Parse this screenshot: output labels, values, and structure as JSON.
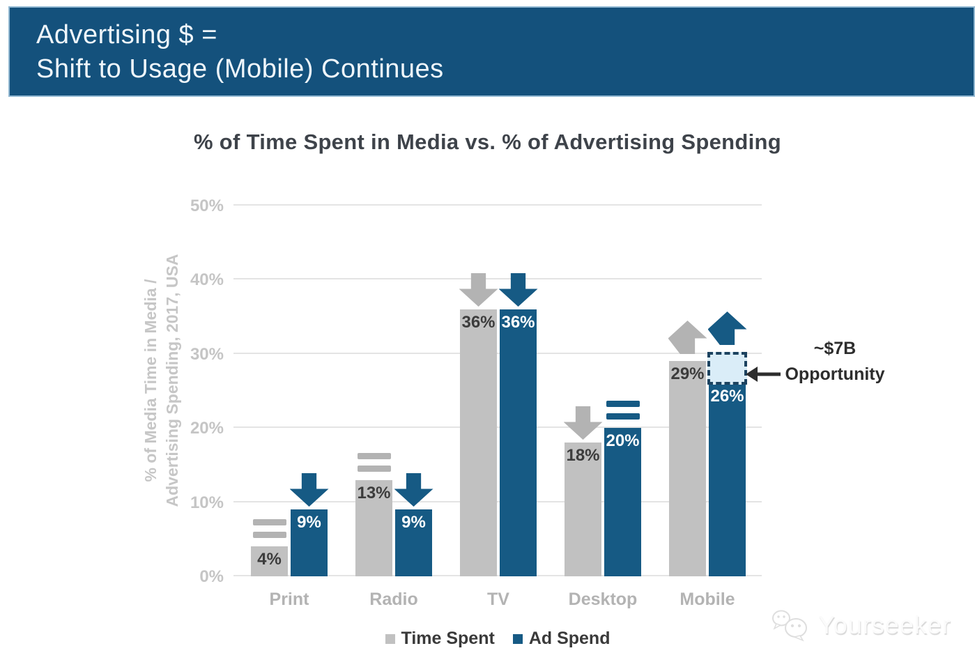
{
  "header": {
    "line1": "Advertising $ =",
    "line2": "Shift to Usage (Mobile) Continues"
  },
  "chart_data": {
    "type": "bar",
    "title": "% of Time Spent in Media vs. % of Advertising Spending",
    "ylabel_line1": "% of Media Time in Media /",
    "ylabel_line2": "Advertising Spending, 2017, USA",
    "categories": [
      "Print",
      "Radio",
      "TV",
      "Desktop",
      "Mobile"
    ],
    "series": [
      {
        "name": "Time Spent",
        "color": "#c1c1c1",
        "indicator_color": "#b3b3b3",
        "label_color": "#3c3c3c",
        "values": [
          4,
          13,
          36,
          18,
          29
        ],
        "value_labels": [
          "4%",
          "13%",
          "36%",
          "18%",
          "29%"
        ],
        "trends": [
          "flat",
          "flat",
          "down",
          "down",
          "up"
        ]
      },
      {
        "name": "Ad Spend",
        "color": "#165a84",
        "indicator_color": "#165a84",
        "label_color": "#ffffff",
        "values": [
          9,
          9,
          36,
          20,
          26
        ],
        "value_labels": [
          "9%",
          "9%",
          "36%",
          "20%",
          "26%"
        ],
        "trends": [
          "down",
          "down",
          "down",
          "flat",
          "up"
        ]
      }
    ],
    "y_ticks": [
      "0%",
      "10%",
      "20%",
      "30%",
      "40%",
      "50%"
    ],
    "ylim": [
      0,
      50
    ],
    "grid": true,
    "legend_position": "bottom",
    "opportunity": {
      "category": "Mobile",
      "series": "Ad Spend",
      "gap_top_value": 30.4,
      "fill": "#daedf8",
      "border": "#1c4360",
      "label_line1": "~$7B",
      "label_line2": "Opportunity"
    }
  },
  "watermark": {
    "text": "Yourseeker",
    "icon": "wechat-icon"
  },
  "colors": {
    "banner_bg": "#14517c",
    "banner_border": "#93b9d3",
    "gridline": "#e4e4e4",
    "axis_text": "#c5c5c5",
    "category_text": "#b3b3b3",
    "title_text": "#3e434a",
    "annotation_text": "#2d2d2d"
  }
}
